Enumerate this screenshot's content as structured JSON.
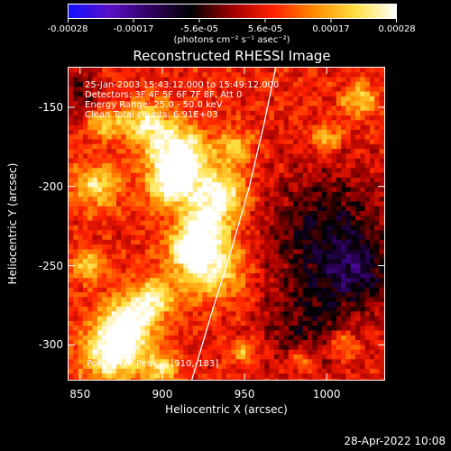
{
  "chart_data": {
    "type": "heatmap",
    "title": "Reconstructed RHESSI Image",
    "xlabel": "Heliocentric X (arcsec)",
    "ylabel": "Heliocentric Y (arcsec)",
    "xlim": [
      843,
      1035
    ],
    "ylim": [
      -322,
      -125
    ],
    "x_ticks": [
      "850",
      "900",
      "950",
      "1000"
    ],
    "y_ticks": [
      "-150",
      "-200",
      "-250",
      "-300"
    ],
    "colorbar": {
      "range": [
        -0.00028,
        0.00028
      ],
      "tick_labels": [
        "-0.00028",
        "-0.00017",
        "-5.6e-05",
        "5.6e-05",
        "0.00017",
        "0.00028"
      ],
      "units": "(photons cm⁻² s⁻¹ asec⁻²)",
      "colors": [
        "#1010ff",
        "#5a10c8",
        "#300060",
        "#000000",
        "#a00000",
        "#ff2000",
        "#ff8a00",
        "#ffe040",
        "#ffffff"
      ]
    },
    "limb_curve": [
      [
        918,
        -322
      ],
      [
        930,
        -280
      ],
      [
        942,
        -240
      ],
      [
        953,
        -200
      ],
      [
        962,
        -160
      ],
      [
        969,
        -125
      ]
    ],
    "peak": [
      910,
      -183
    ],
    "annotations": [
      "25-Jan-2003 15:43:12.000 to 15:49:12.000",
      "Detectors: 3F 4F 5F 6F 7F 8F, Att 0",
      "Energy Range: 25.0 - 50.0 keV",
      "Clean     Total counts: 6.91E+03",
      "Position of Peak = [910,-183]"
    ],
    "timestamp": "28-Apr-2022 10:08"
  }
}
